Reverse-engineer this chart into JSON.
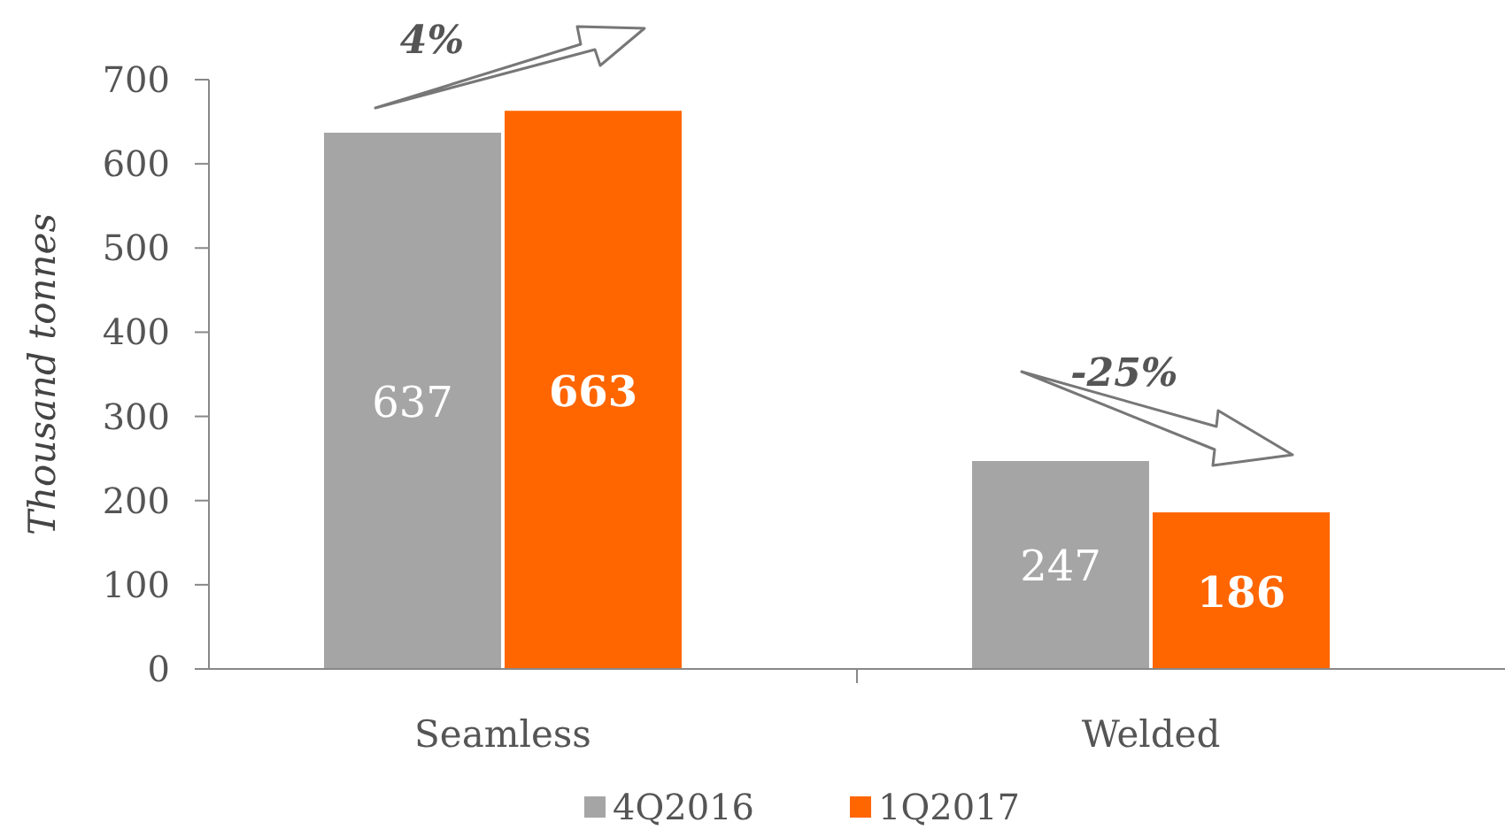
{
  "chart_data": {
    "type": "bar",
    "ylabel": "Thousand tonnes",
    "categories": [
      "Seamless",
      "Welded"
    ],
    "series": [
      {
        "name": "4Q2016",
        "color": "#a5a5a5",
        "values": [
          637,
          247
        ]
      },
      {
        "name": "1Q2017",
        "color": "#ff6600",
        "values": [
          663,
          186
        ]
      }
    ],
    "ylim": [
      0,
      700
    ],
    "yticks": [
      0,
      100,
      200,
      300,
      400,
      500,
      600,
      700
    ],
    "data_labels": true,
    "legend": "bottom",
    "annotations": [
      "4%",
      "-25%"
    ]
  }
}
